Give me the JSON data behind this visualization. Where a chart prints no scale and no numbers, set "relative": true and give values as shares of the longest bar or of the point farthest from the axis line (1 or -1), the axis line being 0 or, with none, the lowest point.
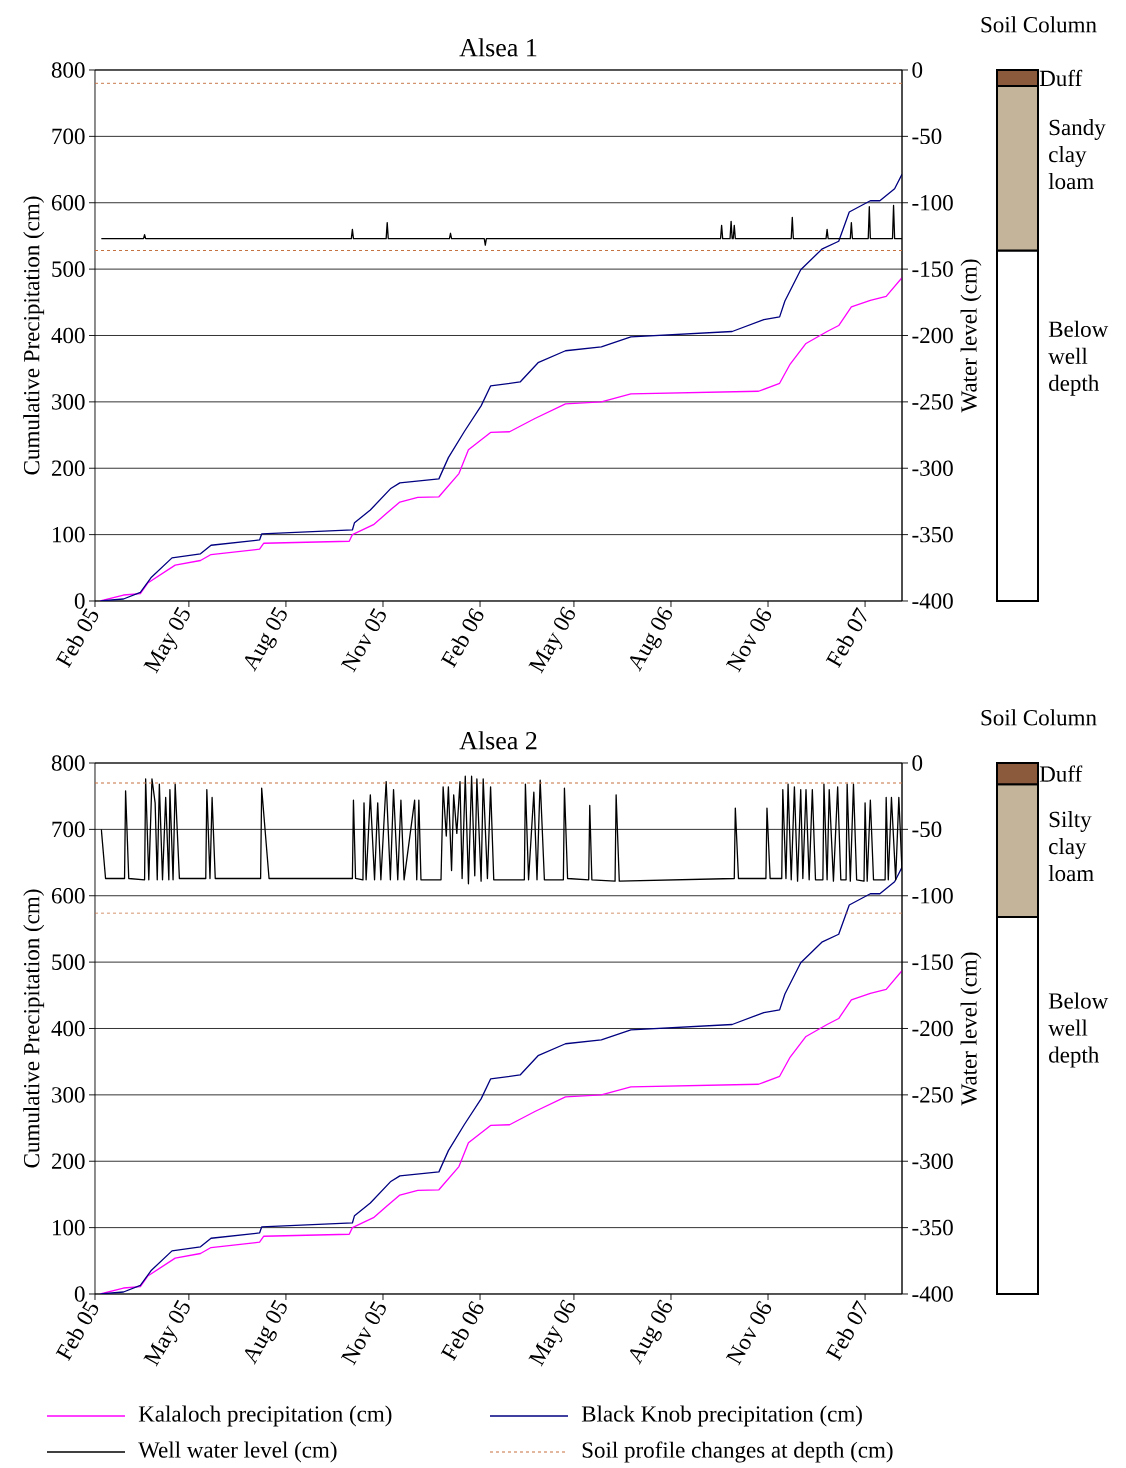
{
  "chart_data": [
    {
      "type": "line",
      "title": "Alsea 1",
      "ylabel": "Cumulative Precipitation (cm)",
      "y2label": "Water level (cm)",
      "xlim": [
        "2005-02-01",
        "2007-03-08"
      ],
      "xticks": [
        {
          "value": "2005-02-01",
          "label": "Feb 05"
        },
        {
          "value": "2005-05-01",
          "label": "May 05"
        },
        {
          "value": "2005-08-01",
          "label": "Aug 05"
        },
        {
          "value": "2005-11-01",
          "label": "Nov 05"
        },
        {
          "value": "2006-02-01",
          "label": "Feb 06"
        },
        {
          "value": "2006-05-01",
          "label": "May 06"
        },
        {
          "value": "2006-08-01",
          "label": "Aug 06"
        },
        {
          "value": "2006-11-01",
          "label": "Nov 06"
        },
        {
          "value": "2007-02-01",
          "label": "Feb 07"
        }
      ],
      "ylim": [
        0,
        800
      ],
      "yticks": [
        0,
        100,
        200,
        300,
        400,
        500,
        600,
        700,
        800
      ],
      "y2lim": [
        -400,
        0
      ],
      "y2ticks": [
        -400,
        -350,
        -300,
        -250,
        -200,
        -150,
        -100,
        -50,
        0
      ],
      "grid": "y",
      "line_style": "solid",
      "series": [
        {
          "color": "#ff00ff",
          "x": [
            "2005-02-06",
            "2005-02-28",
            "2005-03-16",
            "2005-03-23",
            "2005-04-18",
            "2005-05-12",
            "2005-05-22",
            "2005-07-07",
            "2005-07-11",
            "2005-09-30",
            "2005-10-03",
            "2005-10-23",
            "2005-11-05",
            "2005-11-17",
            "2005-12-04",
            "2005-12-24",
            "2006-01-12",
            "2006-01-21",
            "2006-02-11",
            "2006-03-01",
            "2006-03-25",
            "2006-04-23",
            "2006-05-27",
            "2006-06-24",
            "2006-10-23",
            "2006-11-12",
            "2006-11-22",
            "2006-12-07",
            "2006-12-27",
            "2007-01-07",
            "2007-01-19",
            "2007-02-06",
            "2007-02-21",
            "2007-03-08"
          ],
          "values": [
            0,
            9,
            11,
            27,
            54,
            61,
            70,
            78,
            87,
            90,
            100,
            115,
            133,
            149,
            156,
            157,
            192,
            228,
            254,
            255,
            275,
            297,
            300,
            312,
            316,
            328,
            357,
            388,
            406,
            415,
            443,
            453,
            459,
            487
          ]
        },
        {
          "color": "#000080",
          "x": [
            "2005-02-06",
            "2005-02-28",
            "2005-03-16",
            "2005-03-26",
            "2005-04-15",
            "2005-05-12",
            "2005-05-22",
            "2005-07-07",
            "2005-07-09",
            "2005-10-03",
            "2005-10-05",
            "2005-10-20",
            "2005-11-08",
            "2005-11-17",
            "2005-12-24",
            "2006-01-02",
            "2006-01-17",
            "2006-02-02",
            "2006-02-11",
            "2006-03-11",
            "2006-03-28",
            "2006-04-23",
            "2006-05-27",
            "2006-06-24",
            "2006-09-28",
            "2006-10-28",
            "2006-11-12",
            "2006-11-17",
            "2006-12-02",
            "2006-12-22",
            "2007-01-07",
            "2007-01-17",
            "2007-02-06",
            "2007-02-15",
            "2007-03-01",
            "2007-03-08"
          ],
          "values": [
            0,
            3,
            13,
            35,
            65,
            71,
            84,
            92,
            101,
            107,
            118,
            137,
            169,
            178,
            184,
            216,
            255,
            294,
            324,
            330,
            359,
            377,
            383,
            398,
            406,
            424,
            428,
            452,
            499,
            530,
            542,
            586,
            603,
            603,
            621,
            643
          ]
        },
        {
          "color": "#000000",
          "axis": "y2",
          "x": [
            "2005-02-07",
            "2005-03-19",
            "2005-03-20",
            "2005-03-21",
            "2005-10-02",
            "2005-10-03",
            "2005-10-04",
            "2005-11-04",
            "2005-11-05",
            "2005-11-06",
            "2006-01-03",
            "2006-01-04",
            "2006-01-05",
            "2006-02-05",
            "2006-02-06",
            "2006-02-07",
            "2006-09-17",
            "2006-09-18",
            "2006-09-19",
            "2006-09-26",
            "2006-09-27",
            "2006-09-28",
            "2006-09-29",
            "2006-09-30",
            "2006-10-01",
            "2006-11-23",
            "2006-11-24",
            "2006-11-25",
            "2006-12-26",
            "2006-12-27",
            "2006-12-28",
            "2007-01-18",
            "2007-01-19",
            "2007-01-20",
            "2007-02-04",
            "2007-02-05",
            "2007-02-06",
            "2007-02-27",
            "2007-02-28",
            "2007-03-01",
            "2007-03-08"
          ],
          "values": [
            -127,
            -127,
            -124,
            -127,
            -127,
            -120,
            -127,
            -127,
            -115,
            -127,
            -127,
            -123,
            -127,
            -127,
            -132,
            -127,
            -127,
            -117,
            -127,
            -127,
            -114,
            -127,
            -127,
            -117,
            -127,
            -127,
            -111,
            -127,
            -127,
            -120,
            -127,
            -127,
            -115,
            -127,
            -127,
            -103,
            -127,
            -127,
            -102,
            -127,
            -127
          ]
        }
      ],
      "ref_lines": [
        {
          "axis": "y2",
          "value": -10,
          "color": "#c5703f",
          "line_style": "dashed"
        },
        {
          "axis": "y2",
          "value": -136,
          "color": "#c5703f",
          "line_style": "dashed"
        }
      ]
    },
    {
      "type": "bar",
      "title": "Soil Column",
      "categories": [
        null
      ],
      "stacked": true,
      "relative": true,
      "series": [
        {
          "name": "Duff",
          "color": "#8b5a3c",
          "values": [
            -0.03
          ]
        },
        {
          "name": "Sandy clay loam",
          "color": "#c4b49a",
          "values": [
            -0.31
          ]
        },
        {
          "name": "Below well depth",
          "color": "#ffffff",
          "values": [
            -0.66
          ]
        }
      ]
    },
    {
      "type": "line",
      "title": "Alsea 2",
      "ylabel": "Cumulative Precipitation (cm)",
      "y2label": "Water level (cm)",
      "xlim": [
        "2005-02-01",
        "2007-03-08"
      ],
      "xticks": [
        {
          "value": "2005-02-01",
          "label": "Feb 05"
        },
        {
          "value": "2005-05-01",
          "label": "May 05"
        },
        {
          "value": "2005-08-01",
          "label": "Aug 05"
        },
        {
          "value": "2005-11-01",
          "label": "Nov 05"
        },
        {
          "value": "2006-02-01",
          "label": "Feb 06"
        },
        {
          "value": "2006-05-01",
          "label": "May 06"
        },
        {
          "value": "2006-08-01",
          "label": "Aug 06"
        },
        {
          "value": "2006-11-01",
          "label": "Nov 06"
        },
        {
          "value": "2007-02-01",
          "label": "Feb 07"
        }
      ],
      "ylim": [
        0,
        800
      ],
      "yticks": [
        0,
        100,
        200,
        300,
        400,
        500,
        600,
        700,
        800
      ],
      "y2lim": [
        -400,
        0
      ],
      "y2ticks": [
        -400,
        -350,
        -300,
        -250,
        -200,
        -150,
        -100,
        -50,
        0
      ],
      "grid": "y",
      "line_style": "solid",
      "legend": "bottom",
      "series": [
        {
          "name": "Kalaloch precipitation (cm)",
          "color": "#ff00ff",
          "x": [
            "2005-02-06",
            "2005-02-28",
            "2005-03-16",
            "2005-03-23",
            "2005-04-18",
            "2005-05-12",
            "2005-05-22",
            "2005-07-07",
            "2005-07-11",
            "2005-09-30",
            "2005-10-03",
            "2005-10-23",
            "2005-11-05",
            "2005-11-17",
            "2005-12-04",
            "2005-12-24",
            "2006-01-12",
            "2006-01-21",
            "2006-02-11",
            "2006-03-01",
            "2006-03-25",
            "2006-04-23",
            "2006-05-27",
            "2006-06-24",
            "2006-10-23",
            "2006-11-12",
            "2006-11-22",
            "2006-12-07",
            "2006-12-27",
            "2007-01-07",
            "2007-01-19",
            "2007-02-06",
            "2007-02-21",
            "2007-03-08"
          ],
          "values": [
            0,
            9,
            11,
            27,
            54,
            61,
            70,
            78,
            87,
            90,
            100,
            115,
            133,
            149,
            156,
            157,
            192,
            228,
            254,
            255,
            275,
            297,
            300,
            312,
            316,
            328,
            357,
            388,
            406,
            415,
            443,
            453,
            459,
            487
          ]
        },
        {
          "name": "Black Knob precipitation (cm)",
          "color": "#000080",
          "x": [
            "2005-02-06",
            "2005-02-28",
            "2005-03-16",
            "2005-03-26",
            "2005-04-15",
            "2005-05-12",
            "2005-05-22",
            "2005-07-07",
            "2005-07-09",
            "2005-10-03",
            "2005-10-05",
            "2005-10-20",
            "2005-11-08",
            "2005-11-17",
            "2005-12-24",
            "2006-01-02",
            "2006-01-17",
            "2006-02-02",
            "2006-02-11",
            "2006-03-11",
            "2006-03-28",
            "2006-04-23",
            "2006-05-27",
            "2006-06-24",
            "2006-09-28",
            "2006-10-28",
            "2006-11-12",
            "2006-11-17",
            "2006-12-02",
            "2006-12-22",
            "2007-01-07",
            "2007-01-17",
            "2007-02-06",
            "2007-02-15",
            "2007-03-01",
            "2007-03-08"
          ],
          "values": [
            0,
            3,
            13,
            35,
            65,
            71,
            84,
            92,
            101,
            107,
            118,
            137,
            169,
            178,
            184,
            216,
            255,
            294,
            324,
            330,
            359,
            377,
            383,
            398,
            406,
            424,
            428,
            452,
            499,
            530,
            542,
            586,
            603,
            603,
            621,
            643
          ]
        },
        {
          "name": "Well water level (cm)",
          "color": "#000000",
          "axis": "y2",
          "x": [
            "2005-02-07",
            "2005-02-11",
            "2005-03-01",
            "2005-03-02",
            "2005-03-05",
            "2005-03-20",
            "2005-03-21",
            "2005-03-24",
            "2005-03-27",
            "2005-03-30",
            "2005-04-01",
            "2005-04-03",
            "2005-04-06",
            "2005-04-09",
            "2005-04-12",
            "2005-04-13",
            "2005-04-16",
            "2005-04-18",
            "2005-04-22",
            "2005-05-17",
            "2005-05-18",
            "2005-05-21",
            "2005-05-23",
            "2005-05-26",
            "2005-07-08",
            "2005-07-09",
            "2005-07-16",
            "2005-10-03",
            "2005-10-04",
            "2005-10-06",
            "2005-10-13",
            "2005-10-14",
            "2005-10-16",
            "2005-10-20",
            "2005-10-24",
            "2005-10-27",
            "2005-10-30",
            "2005-11-04",
            "2005-11-08",
            "2005-11-11",
            "2005-11-15",
            "2005-11-18",
            "2005-11-21",
            "2005-12-01",
            "2005-12-03",
            "2005-12-05",
            "2005-12-07",
            "2005-12-26",
            "2005-12-28",
            "2005-12-31",
            "2006-01-02",
            "2006-01-05",
            "2006-01-07",
            "2006-01-10",
            "2006-01-13",
            "2006-01-15",
            "2006-01-18",
            "2006-01-21",
            "2006-01-24",
            "2006-01-27",
            "2006-01-29",
            "2006-02-02",
            "2006-02-04",
            "2006-02-08",
            "2006-02-11",
            "2006-02-14",
            "2006-03-15",
            "2006-03-16",
            "2006-03-19",
            "2006-03-24",
            "2006-03-27",
            "2006-03-30",
            "2006-04-03",
            "2006-04-21",
            "2006-04-22",
            "2006-04-25",
            "2006-05-15",
            "2006-05-16",
            "2006-05-18",
            "2006-06-09",
            "2006-06-10",
            "2006-06-13",
            "2006-09-30",
            "2006-10-01",
            "2006-10-04",
            "2006-10-30",
            "2006-10-31",
            "2006-11-03",
            "2006-11-14",
            "2006-11-15",
            "2006-11-18",
            "2006-11-20",
            "2006-11-23",
            "2006-11-26",
            "2006-11-29",
            "2006-12-02",
            "2006-12-04",
            "2006-12-07",
            "2006-12-10",
            "2006-12-13",
            "2006-12-16",
            "2006-12-23",
            "2006-12-24",
            "2006-12-27",
            "2006-12-29",
            "2007-01-02",
            "2007-01-06",
            "2007-01-09",
            "2007-01-14",
            "2007-01-15",
            "2007-01-18",
            "2007-01-21",
            "2007-01-24",
            "2007-01-31",
            "2007-02-01",
            "2007-02-03",
            "2007-02-06",
            "2007-02-09",
            "2007-02-20",
            "2007-02-21",
            "2007-02-23",
            "2007-02-26",
            "2007-03-02",
            "2007-03-05",
            "2007-03-08"
          ],
          "values": [
            -50,
            -87,
            -87,
            -21,
            -87,
            -88,
            -12,
            -88,
            -12,
            -30,
            -88,
            -16,
            -88,
            -26,
            -88,
            -20,
            -88,
            -16,
            -87,
            -87,
            -20,
            -87,
            -26,
            -87,
            -87,
            -19,
            -87,
            -87,
            -28,
            -87,
            -88,
            -30,
            -88,
            -24,
            -88,
            -30,
            -88,
            -14,
            -88,
            -20,
            -88,
            -28,
            -88,
            -28,
            -88,
            -28,
            -88,
            -88,
            -18,
            -55,
            -18,
            -81,
            -24,
            -53,
            -14,
            -87,
            -10,
            -91,
            -10,
            -85,
            -12,
            -89,
            -12,
            -87,
            -18,
            -88,
            -88,
            -16,
            -88,
            -22,
            -88,
            -13,
            -88,
            -88,
            -19,
            -87,
            -88,
            -32,
            -88,
            -89,
            -24,
            -89,
            -87,
            -34,
            -87,
            -87,
            -34,
            -87,
            -87,
            -20,
            -87,
            -16,
            -88,
            -18,
            -89,
            -20,
            -87,
            -20,
            -88,
            -20,
            -88,
            -88,
            -16,
            -88,
            -20,
            -89,
            -18,
            -88,
            -88,
            -16,
            -89,
            -16,
            -88,
            -89,
            -30,
            -89,
            -28,
            -88,
            -88,
            -26,
            -88,
            -26,
            -88,
            -26,
            -81
          ]
        }
      ],
      "ref_lines": [
        {
          "axis": "y2",
          "value": -15,
          "color": "#c5703f",
          "line_style": "dashed",
          "label": "Soil profile changes at depth (cm)"
        },
        {
          "axis": "y2",
          "value": -113,
          "color": "#c5703f",
          "line_style": "dashed"
        }
      ]
    },
    {
      "type": "bar",
      "title": "Soil Column",
      "categories": [
        null
      ],
      "stacked": true,
      "relative": true,
      "series": [
        {
          "name": "Duff",
          "color": "#8b5a3c",
          "values": [
            -0.04
          ]
        },
        {
          "name": "Silty clay loam",
          "color": "#c4b49a",
          "values": [
            -0.25
          ]
        },
        {
          "name": "Below well depth",
          "color": "#ffffff",
          "values": [
            -0.71
          ]
        }
      ]
    }
  ]
}
